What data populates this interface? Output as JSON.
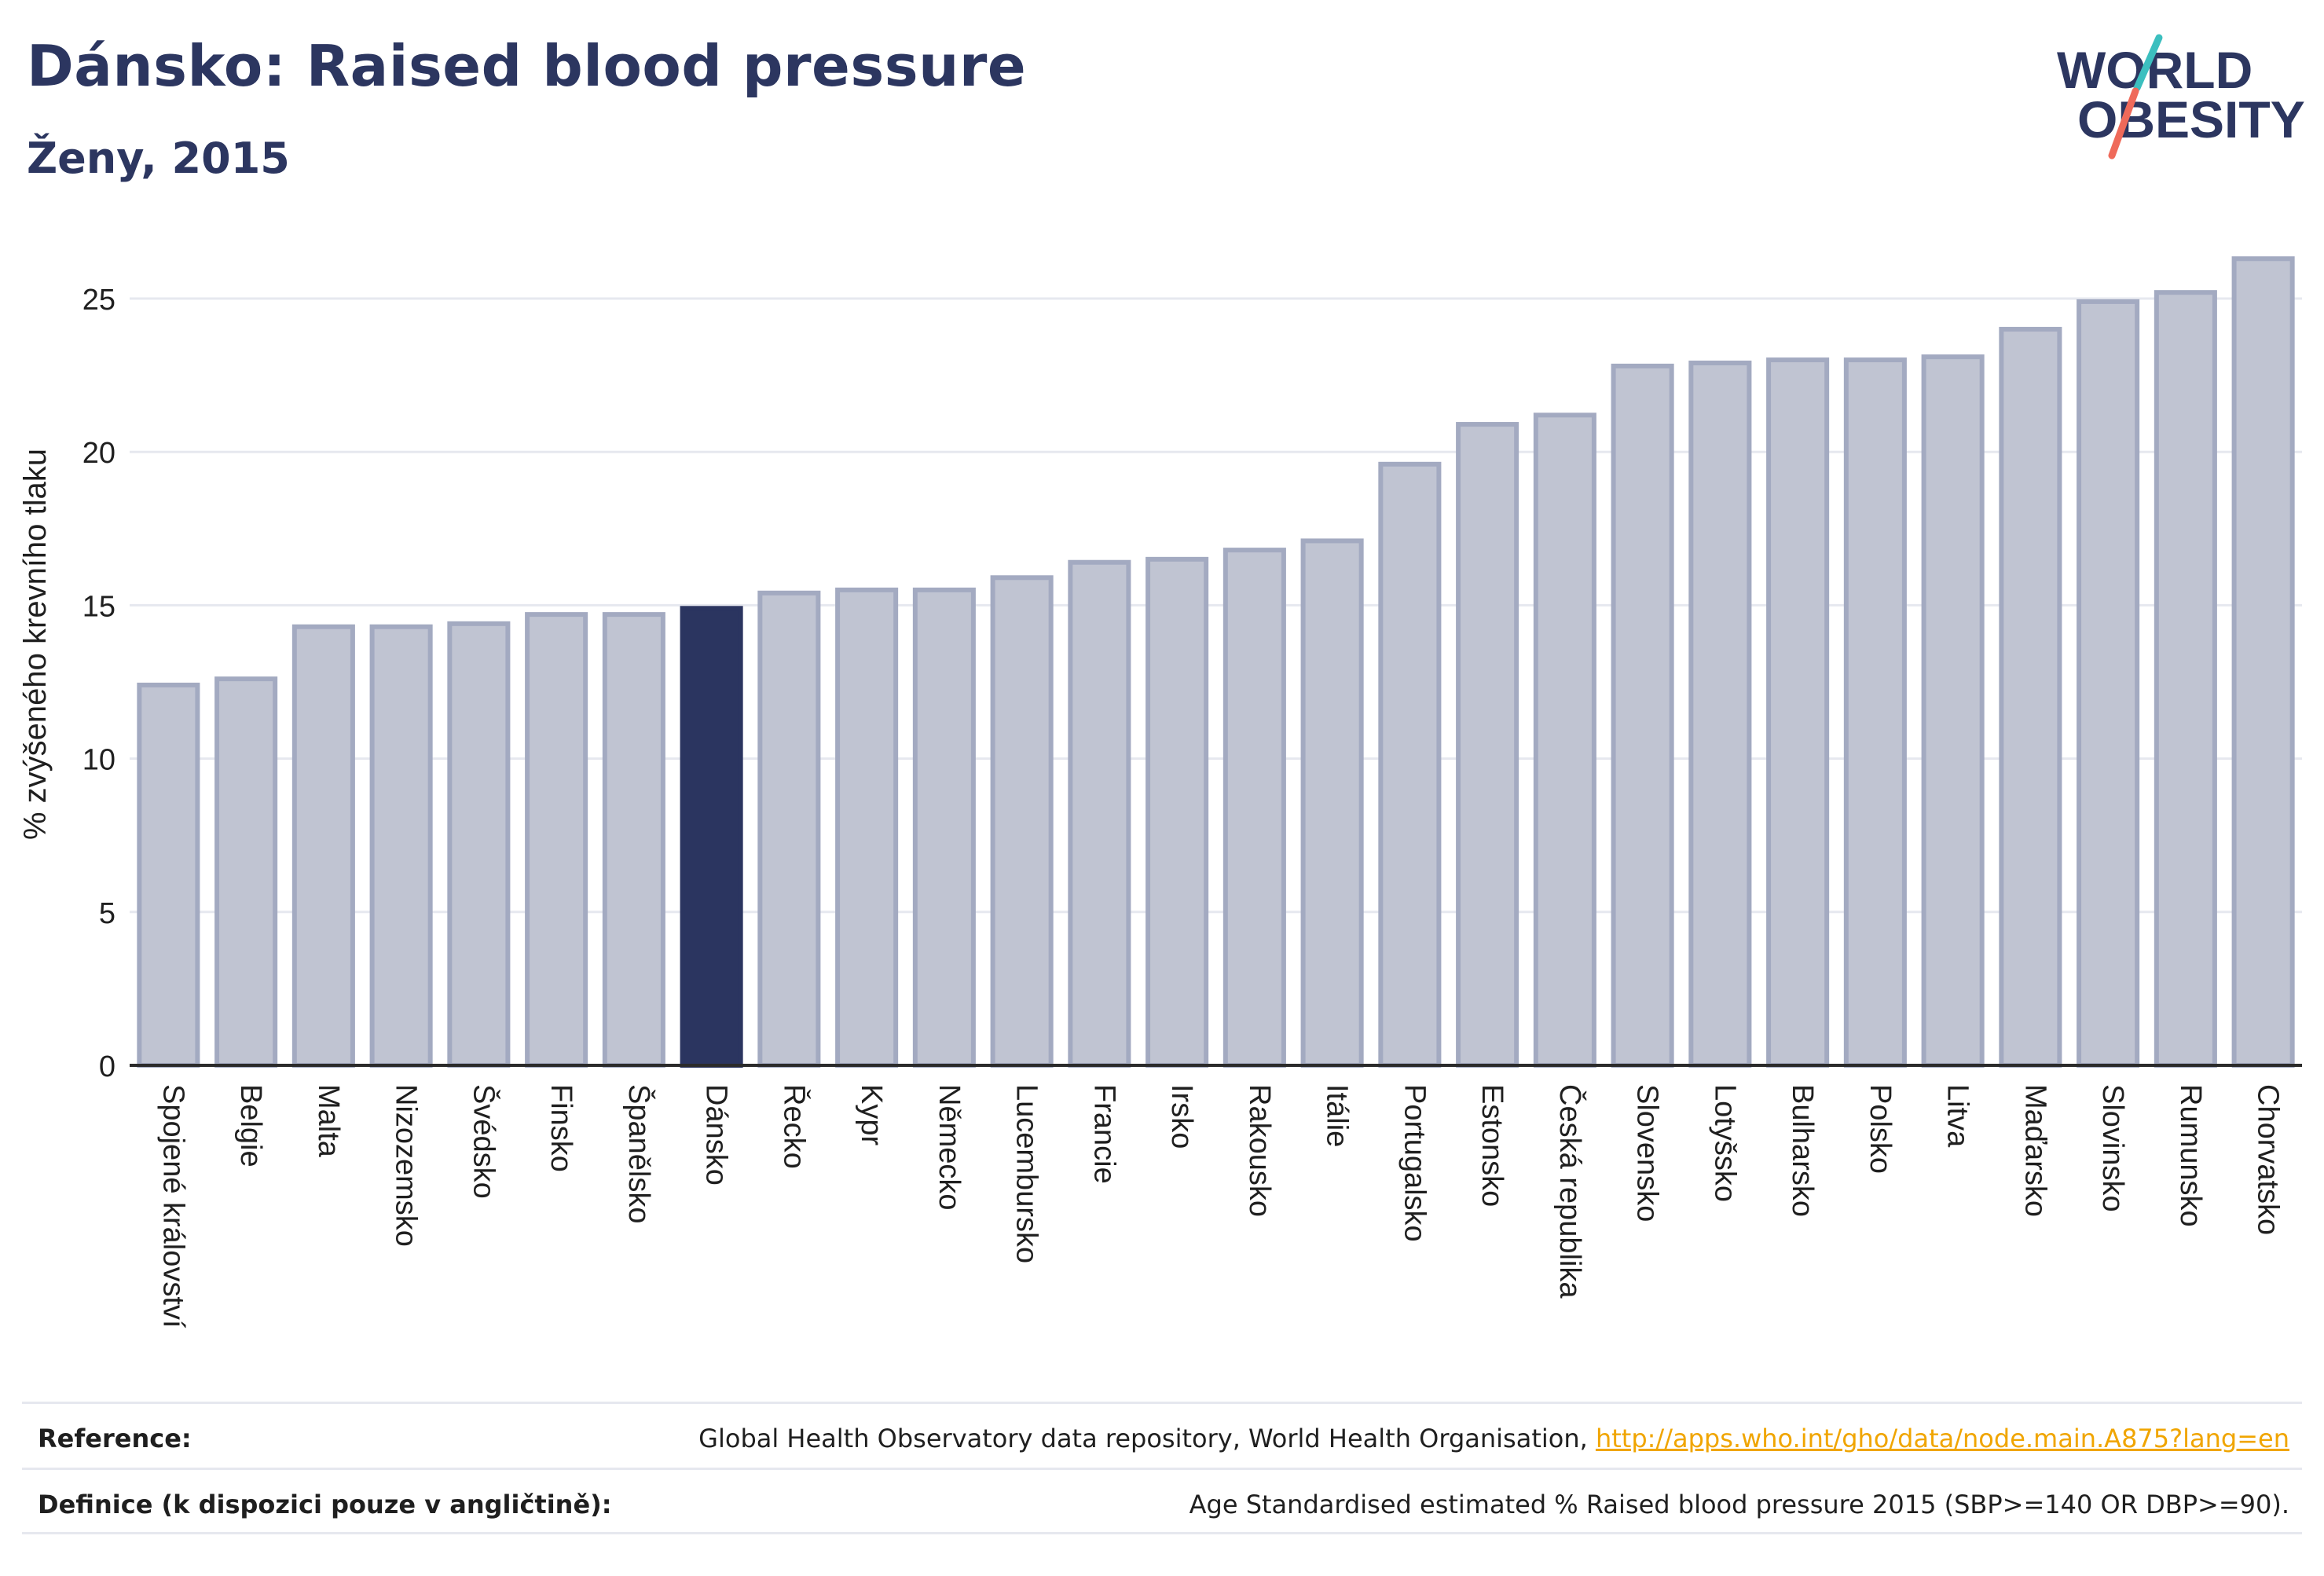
{
  "header": {
    "title": "Dánsko: Raised blood pressure",
    "subtitle": "Ženy, 2015"
  },
  "logo": {
    "line1": "WORLD",
    "line2": "OBESITY"
  },
  "colors": {
    "bar": "#c0c4d2",
    "bar_stroke": "#a3aac1",
    "highlight": "#2b3560",
    "text_dark": "#2c3660",
    "logo_teal": "#3cbfbf",
    "logo_coral": "#ef6a5a"
  },
  "chart_data": {
    "type": "bar",
    "title": "Dánsko: Raised blood pressure",
    "subtitle": "Ženy, 2015",
    "xlabel": "",
    "ylabel": "% zvýšeného krevního tlaku",
    "ylim": [
      0,
      26.5
    ],
    "yticks": [
      0,
      5,
      10,
      15,
      20,
      25
    ],
    "grid": true,
    "highlight_category": "Dánsko",
    "categories": [
      "Spojené království",
      "Belgie",
      "Malta",
      "Nizozemsko",
      "Švédsko",
      "Finsko",
      "Španělsko",
      "Dánsko",
      "Řecko",
      "Kypr",
      "Německo",
      "Lucembursko",
      "Francie",
      "Irsko",
      "Rakousko",
      "Itálie",
      "Portugalsko",
      "Estonsko",
      "Česká republika",
      "Slovensko",
      "Lotyšsko",
      "Bulharsko",
      "Polsko",
      "Litva",
      "Maďarsko",
      "Slovinsko",
      "Rumunsko",
      "Chorvatsko"
    ],
    "values": [
      12.4,
      12.6,
      14.3,
      14.3,
      14.4,
      14.7,
      14.7,
      14.9,
      15.4,
      15.5,
      15.5,
      15.9,
      16.4,
      16.5,
      16.8,
      17.1,
      19.6,
      20.9,
      21.2,
      22.8,
      22.9,
      23.0,
      23.0,
      23.1,
      24.0,
      24.9,
      25.2,
      26.3
    ]
  },
  "footer": {
    "reference_label": "Reference:",
    "reference_text": "Global Health Observatory data repository, World Health Organisation, ",
    "reference_link": "http://apps.who.int/gho/data/node.main.A875?lang=en",
    "definition_label": "Definice (k dispozici pouze v angličtině):",
    "definition_text": "Age Standardised estimated % Raised blood pressure 2015 (SBP>=140 OR DBP>=90)."
  }
}
